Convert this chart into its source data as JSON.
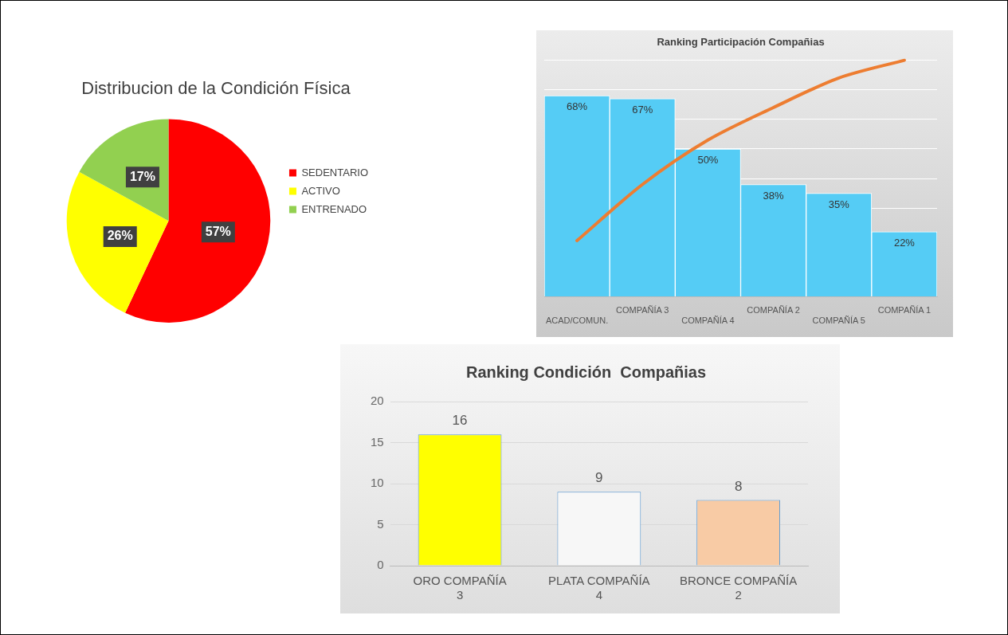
{
  "chart_data": [
    {
      "type": "pie",
      "title": "Distribucion de la Condición Física",
      "categories": [
        "SEDENTARIO",
        "ACTIVO",
        "ENTRENADO"
      ],
      "values": [
        57,
        26,
        17
      ],
      "colors": [
        "#ff0000",
        "#ffff00",
        "#92d050"
      ],
      "value_labels": [
        "57%",
        "26%",
        "17%"
      ],
      "legend": "right"
    },
    {
      "type": "bar",
      "title": "Ranking Participación Compañias",
      "categories": [
        "ACAD/COMUN.",
        "COMPAÑÍA 3",
        "COMPAÑÍA 4",
        "COMPAÑÍA 2",
        "COMPAÑÍA 5",
        "COMPAÑÍA 1"
      ],
      "series": [
        {
          "type": "bar",
          "color": "#55ccf5",
          "values": [
            68,
            67,
            50,
            38,
            35,
            22
          ],
          "value_labels": [
            "68%",
            "67%",
            "50%",
            "38%",
            "35%",
            "22%"
          ]
        },
        {
          "type": "line",
          "color": "#ed7d31",
          "values": [
            19,
            38,
            53,
            64,
            74,
            80
          ]
        }
      ],
      "grid": "y",
      "tick_labels": "x",
      "legend": false
    },
    {
      "type": "bar",
      "title": "Ranking Condición  Compañias",
      "categories": [
        "ORO COMPAÑÍA 3",
        "PLATA COMPAÑÍA 4",
        "BRONCE COMPAÑÍA 2"
      ],
      "values": [
        16,
        9,
        8
      ],
      "colors": [
        "#ffff00",
        "#f7f7f7",
        "#f8cba5"
      ],
      "data_labels": true,
      "ylim": [
        0,
        20
      ],
      "yticks": [
        0,
        5,
        10,
        15,
        20
      ],
      "grid": "y",
      "legend": false
    }
  ]
}
